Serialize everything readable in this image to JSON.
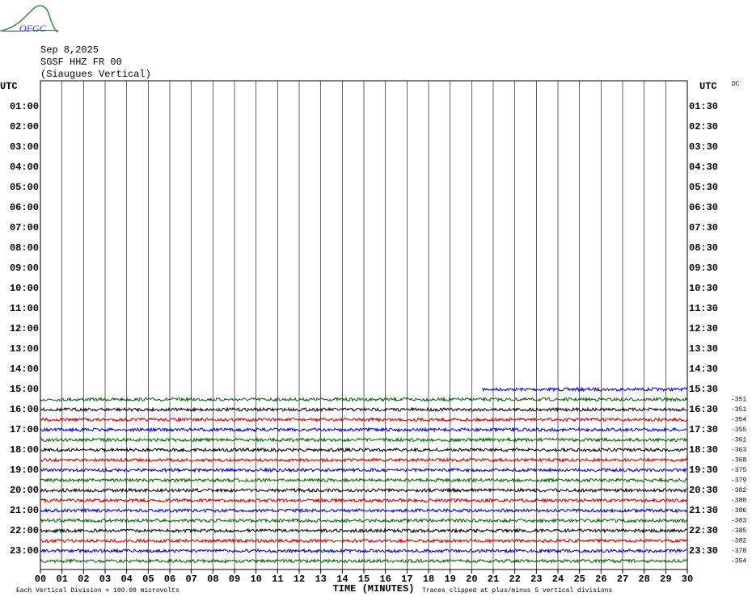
{
  "header": {
    "logo": "OFGC",
    "date": "Sep 8,2025",
    "station": "SGSF HHZ FR 00",
    "location": "(Siaugues Vertical)",
    "dc_label": "DC"
  },
  "left_labels": [
    "UTC",
    "01:00",
    "02:00",
    "03:00",
    "04:00",
    "05:00",
    "06:00",
    "07:00",
    "08:00",
    "09:00",
    "10:00",
    "11:00",
    "12:00",
    "13:00",
    "14:00",
    "15:00",
    "16:00",
    "17:00",
    "18:00",
    "19:00",
    "20:00",
    "21:00",
    "22:00",
    "23:00"
  ],
  "right_labels": [
    "UTC",
    "01:30",
    "02:30",
    "03:30",
    "04:30",
    "05:30",
    "06:30",
    "07:30",
    "08:30",
    "09:30",
    "10:30",
    "11:30",
    "12:30",
    "13:30",
    "14:30",
    "15:30",
    "16:30",
    "17:30",
    "18:30",
    "19:30",
    "20:30",
    "21:30",
    "22:30",
    "23:30"
  ],
  "x_ticks": [
    "00",
    "01",
    "02",
    "03",
    "04",
    "05",
    "06",
    "07",
    "08",
    "09",
    "10",
    "11",
    "12",
    "13",
    "14",
    "15",
    "16",
    "17",
    "18",
    "19",
    "20",
    "21",
    "22",
    "23",
    "24",
    "25",
    "26",
    "27",
    "28",
    "29",
    "30"
  ],
  "x_axis_label": "TIME (MINUTES)",
  "footer_left": "Each Vertical Division =  100.00 microvolts",
  "footer_right": "Traces clipped at plus/minus 5 vertical divisions",
  "traces": [
    {
      "color": "#0000cc",
      "start": 20.5
    },
    {
      "color": "#006600",
      "dc": "-351"
    },
    {
      "color": "#000000",
      "dc": "-351"
    },
    {
      "color": "#cc0000",
      "dc": "-354"
    },
    {
      "color": "#0000cc",
      "dc": "-355"
    },
    {
      "color": "#006600",
      "dc": "-361"
    },
    {
      "color": "#000000",
      "dc": "-363"
    },
    {
      "color": "#cc0000",
      "dc": "-368"
    },
    {
      "color": "#0000cc",
      "dc": "-375"
    },
    {
      "color": "#006600",
      "dc": "-379"
    },
    {
      "color": "#000000",
      "dc": "-382"
    },
    {
      "color": "#cc0000",
      "dc": "-380"
    },
    {
      "color": "#0000cc",
      "dc": "-386"
    },
    {
      "color": "#006600",
      "dc": "-383"
    },
    {
      "color": "#000000",
      "dc": "-385"
    },
    {
      "color": "#cc0000",
      "dc": "-382"
    },
    {
      "color": "#0000cc",
      "dc": "-378"
    },
    {
      "color": "#006600",
      "dc": "-354"
    }
  ]
}
